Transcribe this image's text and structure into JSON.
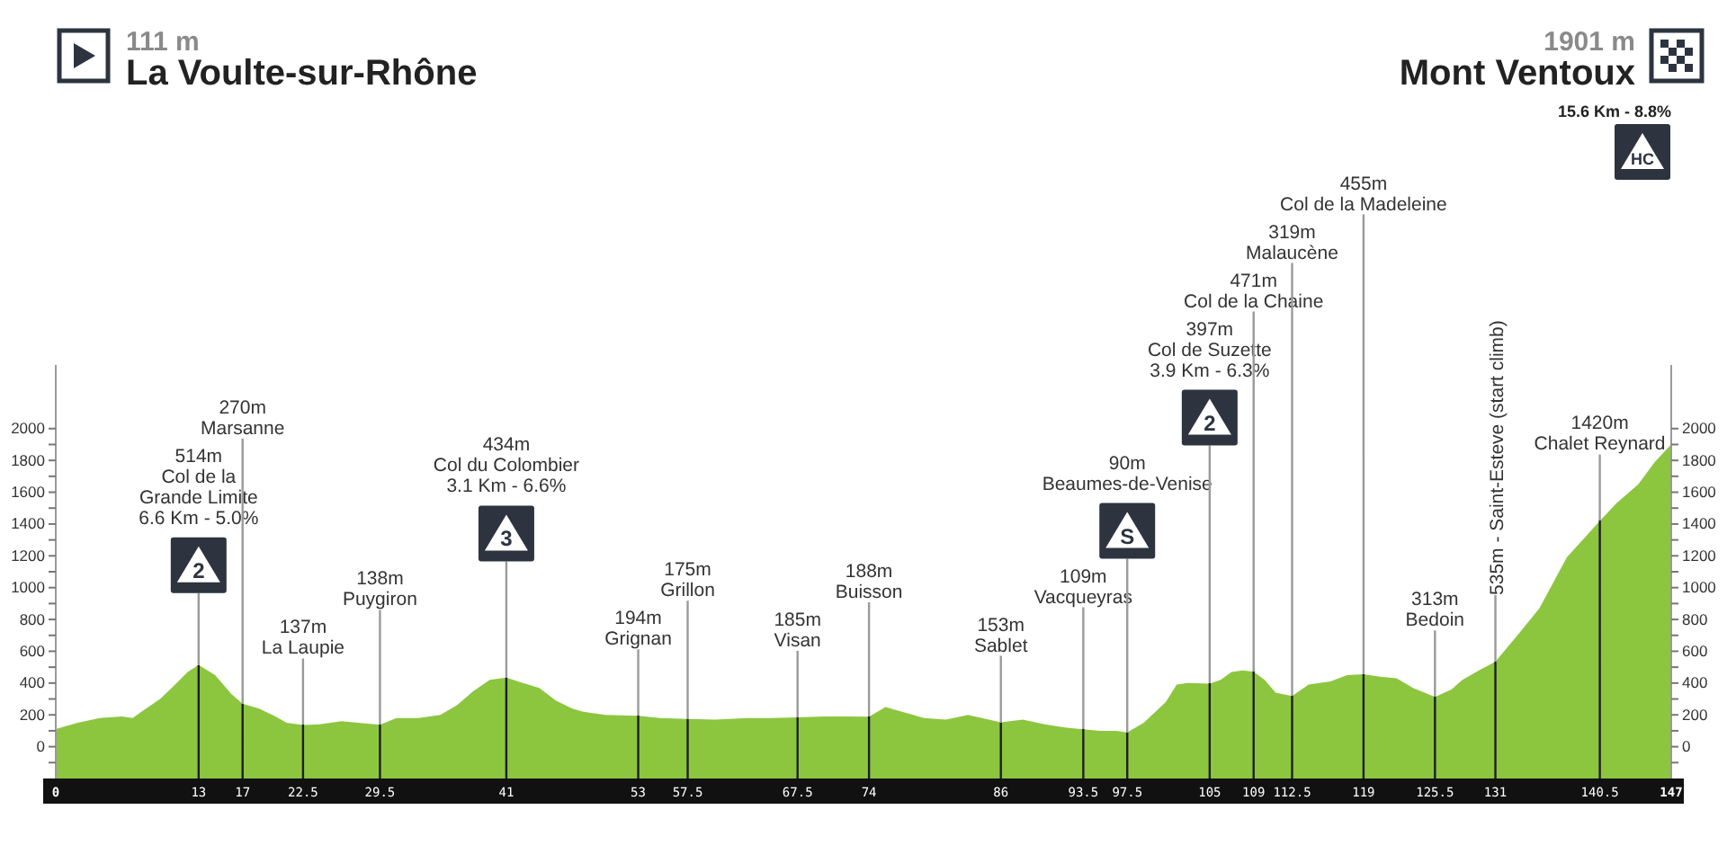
{
  "chart_data": {
    "type": "area",
    "color": "#8cc63f",
    "x": [
      0,
      2,
      4,
      6,
      7,
      8,
      9.5,
      11,
      12,
      13,
      14.5,
      16,
      17,
      18.5,
      20,
      21,
      22.5,
      24,
      26,
      27.5,
      29.5,
      31,
      33,
      35,
      36.5,
      38,
      39.5,
      41,
      42.5,
      44,
      45.5,
      47,
      48,
      50,
      53,
      55,
      57.5,
      60,
      63,
      65,
      67.5,
      70,
      72,
      74,
      75.5,
      77,
      79,
      81,
      83,
      86,
      88,
      90,
      92,
      93.5,
      95,
      96.5,
      97.5,
      99,
      101,
      102,
      103,
      105,
      106,
      107,
      108,
      109,
      110,
      111,
      112.5,
      114,
      116,
      117.5,
      119,
      120.5,
      122,
      123.5,
      125.5,
      127,
      128,
      129.5,
      131,
      133,
      135,
      137.5,
      140.5,
      142,
      144,
      145.5,
      147
    ],
    "values": [
      111,
      150,
      180,
      190,
      180,
      230,
      300,
      400,
      470,
      514,
      450,
      330,
      270,
      240,
      190,
      150,
      137,
      140,
      160,
      150,
      138,
      180,
      180,
      200,
      260,
      350,
      420,
      434,
      400,
      370,
      290,
      240,
      220,
      200,
      194,
      180,
      175,
      170,
      180,
      180,
      185,
      190,
      190,
      188,
      250,
      220,
      180,
      170,
      200,
      153,
      170,
      140,
      120,
      109,
      100,
      100,
      90,
      150,
      280,
      390,
      400,
      397,
      420,
      470,
      480,
      471,
      420,
      340,
      319,
      390,
      410,
      450,
      455,
      440,
      430,
      370,
      313,
      360,
      420,
      480,
      535,
      700,
      870,
      1190,
      1420,
      1530,
      1650,
      1790,
      1901
    ],
    "xlim": [
      0,
      147
    ],
    "xticks": [
      0,
      13,
      17,
      22.5,
      29.5,
      41,
      53,
      57.5,
      67.5,
      74,
      86,
      93.5,
      97.5,
      105,
      109,
      112.5,
      119,
      125.5,
      131,
      140.5,
      147
    ],
    "ylim": [
      -200,
      2400
    ],
    "yticks": [
      {
        "value": -100,
        "label": null
      },
      0,
      {
        "value": 100,
        "label": null
      },
      200,
      {
        "value": 300,
        "label": null
      },
      400,
      {
        "value": 500,
        "label": null
      },
      600,
      {
        "value": 700,
        "label": null
      },
      800,
      {
        "value": 900,
        "label": null
      },
      1000,
      {
        "value": 1100,
        "label": null
      },
      1200,
      {
        "value": 1300,
        "label": null
      },
      1400,
      {
        "value": 1500,
        "label": null
      },
      1600,
      {
        "value": 1700,
        "label": null
      },
      1800,
      {
        "value": 1900,
        "label": null
      },
      2000
    ],
    "y2lim": [
      -200,
      2400
    ],
    "y2ticks": [
      {
        "value": -100,
        "label": null
      },
      0,
      {
        "value": 100,
        "label": null
      },
      200,
      {
        "value": 300,
        "label": null
      },
      400,
      {
        "value": 500,
        "label": null
      },
      600,
      {
        "value": 700,
        "label": null
      },
      800,
      {
        "value": 900,
        "label": null
      },
      1000,
      {
        "value": 1100,
        "label": null
      },
      1200,
      {
        "value": 1300,
        "label": null
      },
      1400,
      {
        "value": 1500,
        "label": null
      },
      1600,
      {
        "value": 1700,
        "label": null
      },
      1800,
      {
        "value": 1900,
        "label": null
      },
      2000
    ],
    "bands": [
      {
        "axis": "y",
        "from": -200,
        "to": 0,
        "color": "#8cc63f"
      }
    ],
    "ref_lines": [
      {
        "axis": "x",
        "value": 13,
        "label": "514m\nCol de la\nGrande Limite\n6.6 Km - 5.0%\n\n2"
      },
      {
        "axis": "x",
        "value": 17,
        "label": "270m\nMarsanne"
      },
      {
        "axis": "x",
        "value": 22.5,
        "label": "137m\nLa Laupie"
      },
      {
        "axis": "x",
        "value": 29.5,
        "label": "138m\nPuygiron"
      },
      {
        "axis": "x",
        "value": 41,
        "label": "434m\nCol du Colombier\n3.1 Km - 6.6%\n\n3"
      },
      {
        "axis": "x",
        "value": 53,
        "label": "194m\nGrignan"
      },
      {
        "axis": "x",
        "value": 57.5,
        "label": "175m\nGrillon"
      },
      {
        "axis": "x",
        "value": 67.5,
        "label": "185m\nVisan"
      },
      {
        "axis": "x",
        "value": 74,
        "label": "188m\nBuisson"
      },
      {
        "axis": "x",
        "value": 86,
        "label": "153m\nSablet"
      },
      {
        "axis": "x",
        "value": 93.5,
        "label": "109m\nVacqueyras"
      },
      {
        "axis": "x",
        "value": 97.5,
        "label": "90m\nBeaumes-de-Venise\n\nS"
      },
      {
        "axis": "x",
        "value": 105,
        "label": "397m\nCol de Suzette\n3.9 Km - 6.3%\n\n2"
      },
      {
        "axis": "x",
        "value": 109,
        "label": "471m\nCol de la Chaine"
      },
      {
        "axis": "x",
        "value": 112.5,
        "label": "319m\nMalaucène"
      },
      {
        "axis": "x",
        "value": 119,
        "label": "455m\nCol de la Madeleine"
      },
      {
        "axis": "x",
        "value": 125.5,
        "label": "313m\nBedoin"
      },
      {
        "axis": "x",
        "value": 131,
        "label": "535m - Saint-Esteve (start climb)"
      },
      {
        "axis": "x",
        "value": 140.5,
        "label": "1420m\nChalet Reynard"
      }
    ],
    "annotations": [
      "111 m",
      "La Voulte-sur-Rhône",
      "1901 m",
      "Mont Ventoux",
      "15.6 Km - 8.8%",
      "HC"
    ]
  }
}
